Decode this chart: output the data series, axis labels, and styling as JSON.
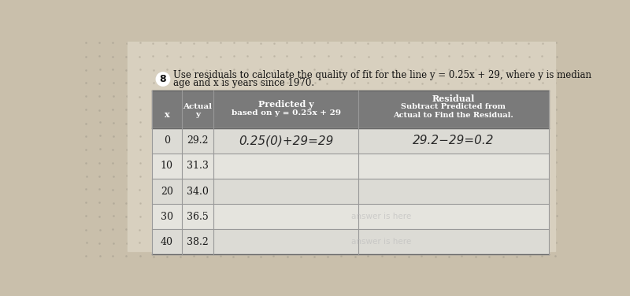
{
  "title_circle": "8",
  "title_line1": "Use residuals to calculate the quality of fit for the line y = 0.25x + 29, where y is median",
  "title_line2": "age and x is years since 1970.",
  "header_col1": "x",
  "header_col2": "Actual\ny",
  "header_col3": "Predicted y\nbased on y = 0.25x + 29",
  "header_col4": "Residual\nSubtract Predicted from\nActual to Find the Residual.",
  "rows": [
    {
      "x": "0",
      "y": "29.2",
      "predicted": "0.25(0)+29=29",
      "residual": "29.2−29=0.2"
    },
    {
      "x": "10",
      "y": "31.3",
      "predicted": "",
      "residual": ""
    },
    {
      "x": "20",
      "y": "34.0",
      "predicted": "",
      "residual": ""
    },
    {
      "x": "30",
      "y": "36.5",
      "predicted": "",
      "residual": ""
    },
    {
      "x": "40",
      "y": "38.2",
      "predicted": "",
      "residual": ""
    }
  ],
  "page_bg": "#c9bfab",
  "paper_bg": "#e8e3d8",
  "header_bg": "#7a7a7a",
  "row_bg_even": "#dcdbd5",
  "row_bg_odd": "#e5e4de",
  "grid_color": "#aaaaaa",
  "text_color": "#1a1a1a",
  "header_text_color": "#ffffff",
  "handwriting_color": "#2a2a2a",
  "watermark_color": "#bbbbbb",
  "dot_color": "#b0a898"
}
